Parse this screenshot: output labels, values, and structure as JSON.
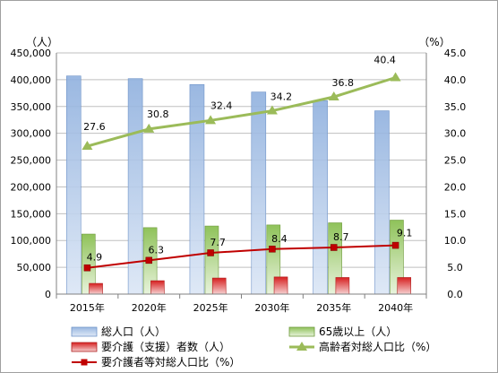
{
  "chart_data": {
    "type": "bar",
    "categories": [
      "2015年",
      "2020年",
      "2025年",
      "2030年",
      "2035年",
      "2040年"
    ],
    "left_unit": "（人）",
    "right_unit": "（%）",
    "ylim_left": [
      0,
      450000
    ],
    "ylim_right": [
      0,
      45
    ],
    "yticks_left": [
      "0",
      "50,000",
      "100,000",
      "150,000",
      "200,000",
      "250,000",
      "300,000",
      "350,000",
      "400,000",
      "450,000"
    ],
    "yticks_right": [
      "0.0",
      "5.0",
      "10.0",
      "15.0",
      "20.0",
      "25.0",
      "30.0",
      "35.0",
      "40.0",
      "45.0"
    ],
    "grid": true,
    "legend_position": "bottom",
    "bar_series": [
      {
        "name": "総人口（人）",
        "color": "#4f81bd",
        "values": [
          407000,
          402000,
          391000,
          377000,
          361000,
          342000
        ]
      },
      {
        "name": "65歳以上（人）",
        "color": "#9bbb59",
        "values": [
          112000,
          124000,
          127000,
          129000,
          133000,
          138000
        ]
      },
      {
        "name": "要介護（支援）者数（人）",
        "color": "#c0504d",
        "values": [
          20000,
          25000,
          30000,
          32000,
          31000,
          31000
        ]
      }
    ],
    "line_series": [
      {
        "name": "高齢者対総人口比（%）",
        "color": "#9bbb59",
        "marker": "triangle",
        "values": [
          27.6,
          30.8,
          32.4,
          34.2,
          36.8,
          40.4
        ],
        "labels": [
          "27.6",
          "30.8",
          "32.4",
          "34.2",
          "36.8",
          "40.4"
        ]
      },
      {
        "name": "要介護者等対総人口比（%）",
        "color": "#c00000",
        "marker": "square",
        "values": [
          4.9,
          6.3,
          7.7,
          8.4,
          8.7,
          9.1
        ],
        "labels": [
          "4.9",
          "6.3",
          "7.7",
          "8.4",
          "8.7",
          "9.1"
        ]
      }
    ]
  }
}
